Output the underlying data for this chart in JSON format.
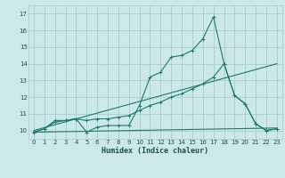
{
  "title": "",
  "xlabel": "Humidex (Indice chaleur)",
  "bg_color": "#cce8e8",
  "line_color": "#1a7a6e",
  "grid_color": "#aacccc",
  "xlim": [
    -0.5,
    23.5
  ],
  "ylim": [
    9.5,
    17.5
  ],
  "xticks": [
    0,
    1,
    2,
    3,
    4,
    5,
    6,
    7,
    8,
    9,
    10,
    11,
    12,
    13,
    14,
    15,
    16,
    17,
    18,
    19,
    20,
    21,
    22,
    23
  ],
  "yticks": [
    10,
    11,
    12,
    13,
    14,
    15,
    16,
    17
  ],
  "line1_x": [
    0,
    1,
    2,
    3,
    4,
    5,
    6,
    7,
    8,
    9,
    10,
    11,
    12,
    13,
    14,
    15,
    16,
    17,
    18,
    19,
    20,
    21,
    22,
    23
  ],
  "line1_y": [
    9.9,
    10.1,
    10.5,
    10.6,
    10.7,
    9.9,
    10.2,
    10.3,
    10.3,
    10.3,
    11.5,
    13.2,
    13.5,
    14.4,
    14.5,
    14.8,
    15.5,
    16.8,
    14.0,
    12.1,
    11.6,
    10.4,
    10.0,
    10.1
  ],
  "line2_x": [
    0,
    1,
    2,
    3,
    4,
    5,
    6,
    7,
    8,
    9,
    10,
    11,
    12,
    13,
    14,
    15,
    16,
    17,
    18,
    19,
    20,
    21,
    22,
    23
  ],
  "line2_y": [
    9.9,
    10.1,
    10.6,
    10.6,
    10.7,
    10.6,
    10.7,
    10.7,
    10.8,
    10.9,
    11.2,
    11.5,
    11.7,
    12.0,
    12.2,
    12.5,
    12.8,
    13.2,
    14.0,
    12.1,
    11.6,
    10.4,
    10.0,
    10.1
  ],
  "line3_x": [
    0,
    23
  ],
  "line3_y": [
    10.0,
    14.0
  ],
  "line4_x": [
    0,
    23
  ],
  "line4_y": [
    9.9,
    10.15
  ]
}
